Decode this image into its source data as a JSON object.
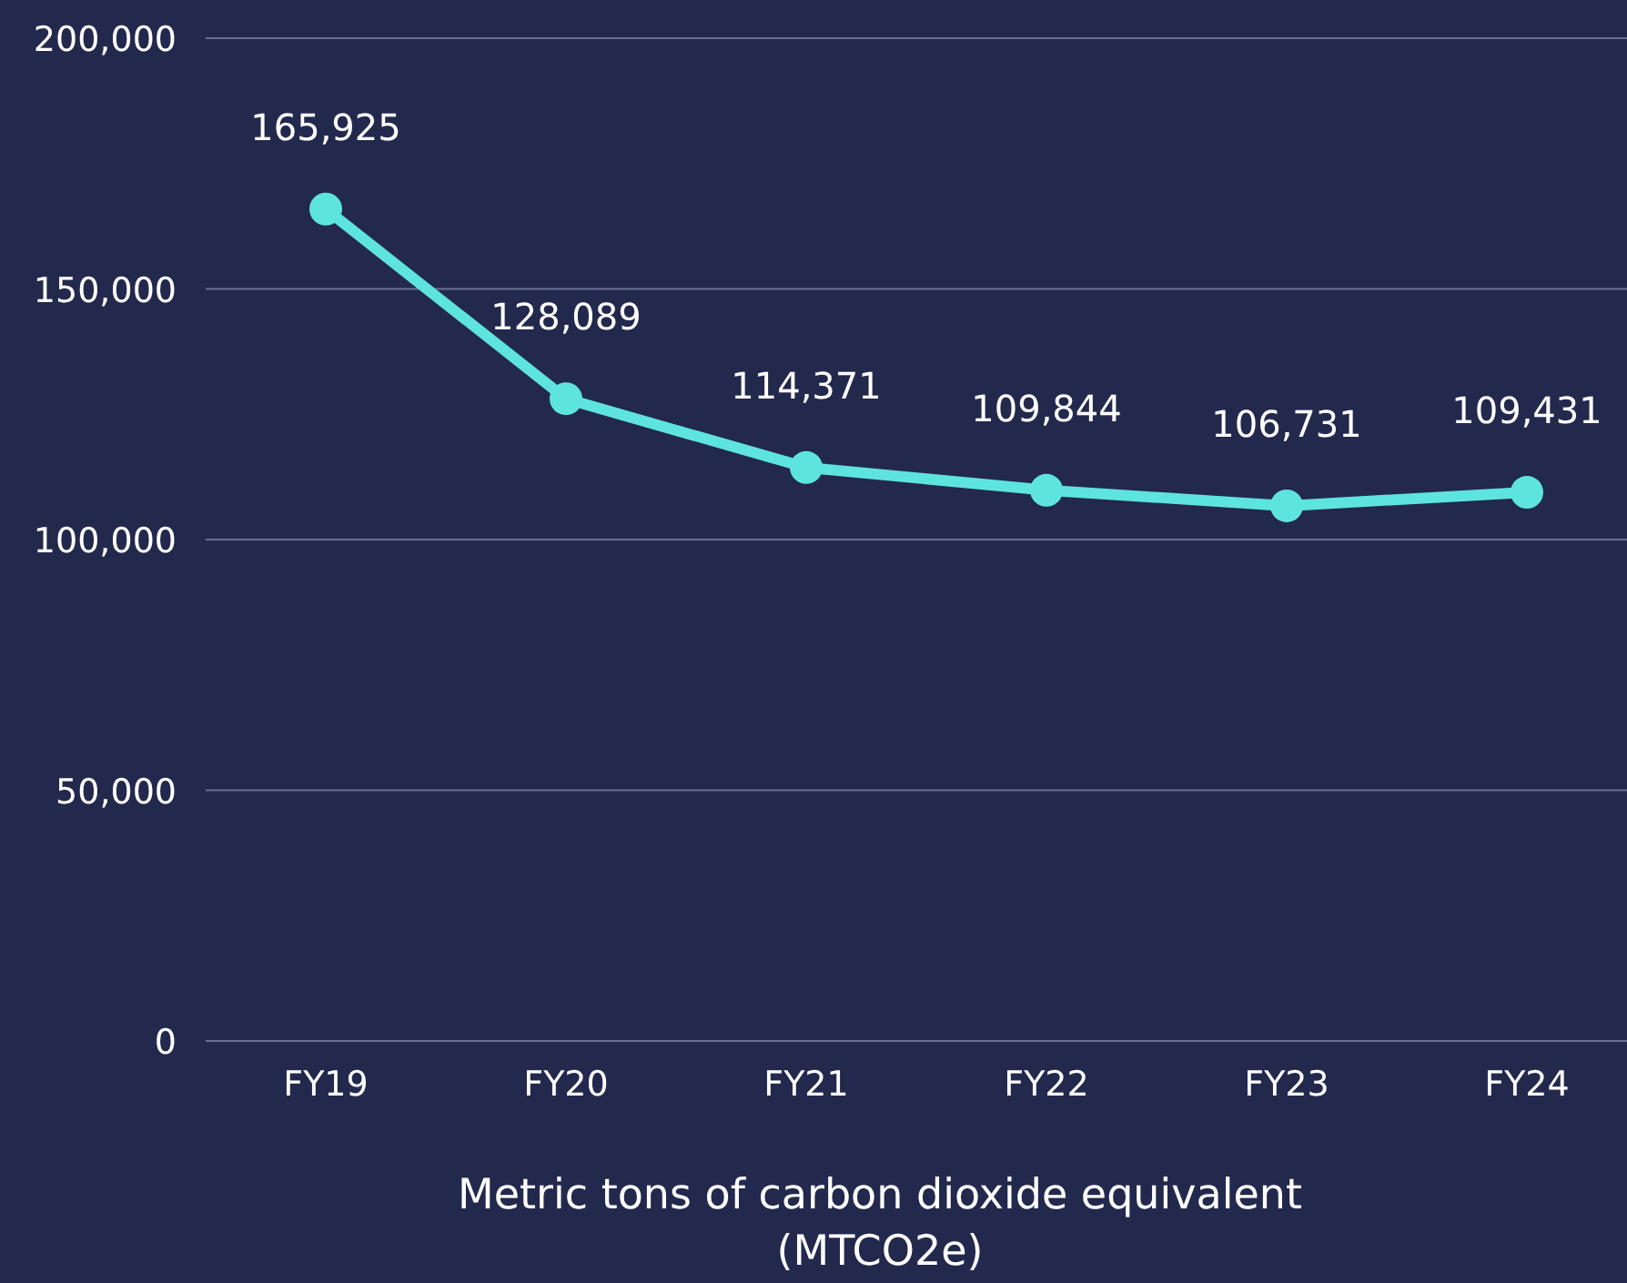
{
  "chart_data": {
    "type": "line",
    "xlabel": "Metric tons of carbon dioxide equivalent (MTCO2e)",
    "categories": [
      "FY19",
      "FY20",
      "FY21",
      "FY22",
      "FY23",
      "FY24"
    ],
    "series": [
      {
        "color": "#5ee4de",
        "values": [
          165925,
          128089,
          114371,
          109844,
          106731,
          109431
        ],
        "value_labels": [
          "165,925",
          "128,089",
          "114,371",
          "109,844",
          "106,731",
          "109,431"
        ]
      }
    ],
    "ylim": [
      0,
      200000
    ],
    "yticks": [
      0,
      {
        "value": 50000,
        "label": "50,000"
      },
      {
        "value": 100000,
        "label": "100,000"
      },
      {
        "value": 150000,
        "label": "150,000"
      },
      {
        "value": 200000,
        "label": "200,000"
      }
    ],
    "grid": "y",
    "marker": "circle",
    "line_style": "solid"
  }
}
